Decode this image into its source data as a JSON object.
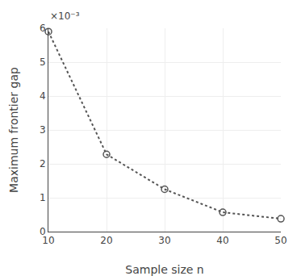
{
  "chart_data": {
    "type": "line",
    "x": [
      10,
      20,
      30,
      40,
      50
    ],
    "values": [
      0.0059,
      0.00228,
      0.00125,
      0.00057,
      0.00038
    ],
    "xlabel": "Sample size n",
    "ylabel": "Maximum frontier gap",
    "annotation": "×10⁻³",
    "xlim": [
      10,
      50
    ],
    "ylim": [
      0,
      0.006
    ],
    "xticks": [
      10,
      20,
      30,
      40,
      50
    ],
    "yticks": [
      0,
      {
        "value": 0.001,
        "label": "1"
      },
      {
        "value": 0.002,
        "label": "2"
      },
      {
        "value": 0.003,
        "label": "3"
      },
      {
        "value": 0.004,
        "label": "4"
      },
      {
        "value": 0.005,
        "label": "5"
      },
      {
        "value": 0.006,
        "label": "6"
      }
    ],
    "color": "#555555",
    "marker": "open circle",
    "line_style": "dotted",
    "grid": true
  }
}
